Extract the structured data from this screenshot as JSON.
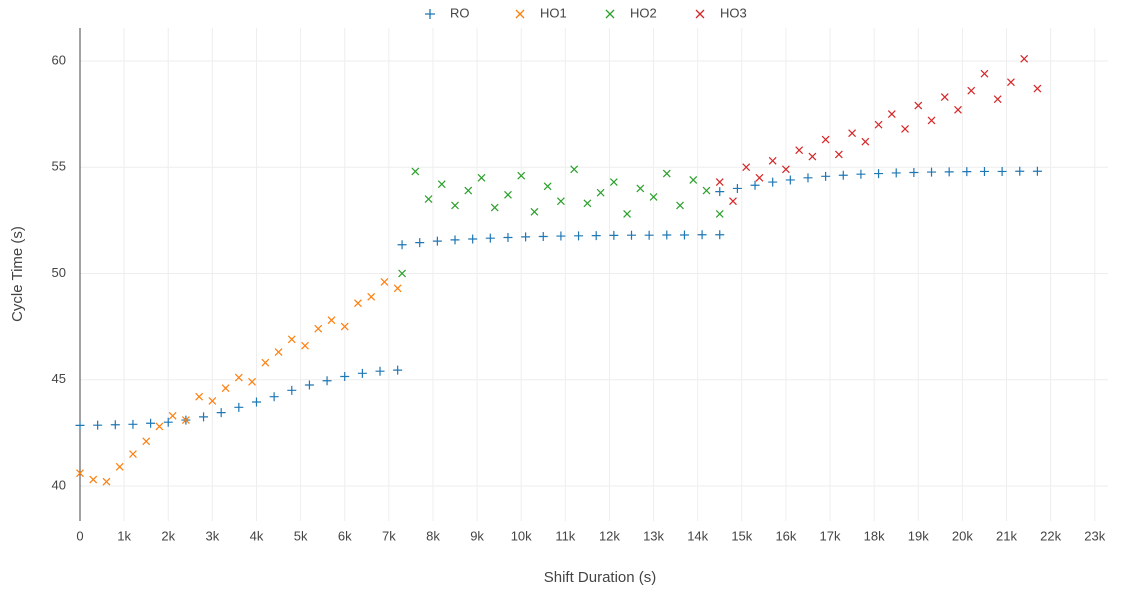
{
  "chart_data": {
    "type": "scatter",
    "x_label": "Shift Duration (s)",
    "y_label": "Cycle Time (s)",
    "xlim": [
      0,
      23300
    ],
    "ylim": [
      38.35,
      61.55
    ],
    "xticks": [
      0,
      {
        "value": 1000,
        "label": "1k"
      },
      {
        "value": 2000,
        "label": "2k"
      },
      {
        "value": 3000,
        "label": "3k"
      },
      {
        "value": 4000,
        "label": "4k"
      },
      {
        "value": 5000,
        "label": "5k"
      },
      {
        "value": 6000,
        "label": "6k"
      },
      {
        "value": 7000,
        "label": "7k"
      },
      {
        "value": 8000,
        "label": "8k"
      },
      {
        "value": 9000,
        "label": "9k"
      },
      {
        "value": 10000,
        "label": "10k"
      },
      {
        "value": 11000,
        "label": "11k"
      },
      {
        "value": 12000,
        "label": "12k"
      },
      {
        "value": 13000,
        "label": "13k"
      },
      {
        "value": 14000,
        "label": "14k"
      },
      {
        "value": 15000,
        "label": "15k"
      },
      {
        "value": 16000,
        "label": "16k"
      },
      {
        "value": 17000,
        "label": "17k"
      },
      {
        "value": 18000,
        "label": "18k"
      },
      {
        "value": 19000,
        "label": "19k"
      },
      {
        "value": 20000,
        "label": "20k"
      },
      {
        "value": 21000,
        "label": "21k"
      },
      {
        "value": 22000,
        "label": "22k"
      },
      {
        "value": 23000,
        "label": "23k"
      }
    ],
    "yticks": [
      40,
      45,
      50,
      55,
      60
    ],
    "grid": true,
    "legend": "top",
    "series": [
      {
        "name": "RO",
        "color": "#1f77b4",
        "marker": "cross",
        "x": [
          0,
          400,
          800,
          1200,
          1600,
          2000,
          2400,
          2800,
          3200,
          3600,
          4000,
          4400,
          4800,
          5200,
          5600,
          6000,
          6400,
          6800,
          7200,
          7300,
          7700,
          8100,
          8500,
          8900,
          9300,
          9700,
          10100,
          10500,
          10900,
          11300,
          11700,
          12100,
          12500,
          12900,
          13300,
          13700,
          14100,
          14500,
          14500,
          14900,
          15300,
          15700,
          16100,
          16500,
          16900,
          17300,
          17700,
          18100,
          18500,
          18900,
          19300,
          19700,
          20100,
          20500,
          20900,
          21300,
          21700
        ],
        "values": [
          42.85,
          42.86,
          42.88,
          42.9,
          42.95,
          43.0,
          43.1,
          43.25,
          43.45,
          43.7,
          43.95,
          44.2,
          44.5,
          44.75,
          44.95,
          45.15,
          45.3,
          45.4,
          45.45,
          51.35,
          51.45,
          51.52,
          51.58,
          51.62,
          51.66,
          51.69,
          51.72,
          51.74,
          51.76,
          51.77,
          51.78,
          51.79,
          51.8,
          51.8,
          51.81,
          51.81,
          51.82,
          51.82,
          53.85,
          54.0,
          54.15,
          54.3,
          54.4,
          54.5,
          54.57,
          54.62,
          54.67,
          54.7,
          54.73,
          54.75,
          54.77,
          54.78,
          54.79,
          54.8,
          54.8,
          54.81,
          54.81
        ]
      },
      {
        "name": "HO1",
        "color": "#ff7f0e",
        "marker": "x",
        "x": [
          0,
          300,
          600,
          900,
          1200,
          1500,
          1800,
          2100,
          2400,
          2700,
          3000,
          3300,
          3600,
          3900,
          4200,
          4500,
          4800,
          5100,
          5400,
          5700,
          6000,
          6300,
          6600,
          6900,
          7200
        ],
        "values": [
          40.6,
          40.3,
          40.2,
          40.9,
          41.5,
          42.1,
          42.8,
          43.3,
          43.1,
          44.2,
          44.0,
          44.6,
          45.1,
          44.9,
          45.8,
          46.3,
          46.9,
          46.6,
          47.4,
          47.8,
          47.5,
          48.6,
          48.9,
          49.6,
          49.3
        ]
      },
      {
        "name": "HO2",
        "color": "#2ca02c",
        "marker": "x",
        "x": [
          7300,
          7600,
          7900,
          8200,
          8500,
          8800,
          9100,
          9400,
          9700,
          10000,
          10300,
          10600,
          10900,
          11200,
          11500,
          11800,
          12100,
          12400,
          12700,
          13000,
          13300,
          13600,
          13900,
          14200,
          14500
        ],
        "values": [
          50.0,
          54.8,
          53.5,
          54.2,
          53.2,
          53.9,
          54.5,
          53.1,
          53.7,
          54.6,
          52.9,
          54.1,
          53.4,
          54.9,
          53.3,
          53.8,
          54.3,
          52.8,
          54.0,
          53.6,
          54.7,
          53.2,
          54.4,
          53.9,
          52.8
        ]
      },
      {
        "name": "HO3",
        "color": "#d62728",
        "marker": "x",
        "x": [
          14500,
          14800,
          15100,
          15400,
          15700,
          16000,
          16300,
          16600,
          16900,
          17200,
          17500,
          17800,
          18100,
          18400,
          18700,
          19000,
          19300,
          19600,
          19900,
          20200,
          20500,
          20800,
          21100,
          21400,
          21700
        ],
        "values": [
          54.3,
          53.4,
          55.0,
          54.5,
          55.3,
          54.9,
          55.8,
          55.5,
          56.3,
          55.6,
          56.6,
          56.2,
          57.0,
          57.5,
          56.8,
          57.9,
          57.2,
          58.3,
          57.7,
          58.6,
          59.4,
          58.2,
          59.0,
          60.1,
          58.7
        ]
      }
    ]
  }
}
